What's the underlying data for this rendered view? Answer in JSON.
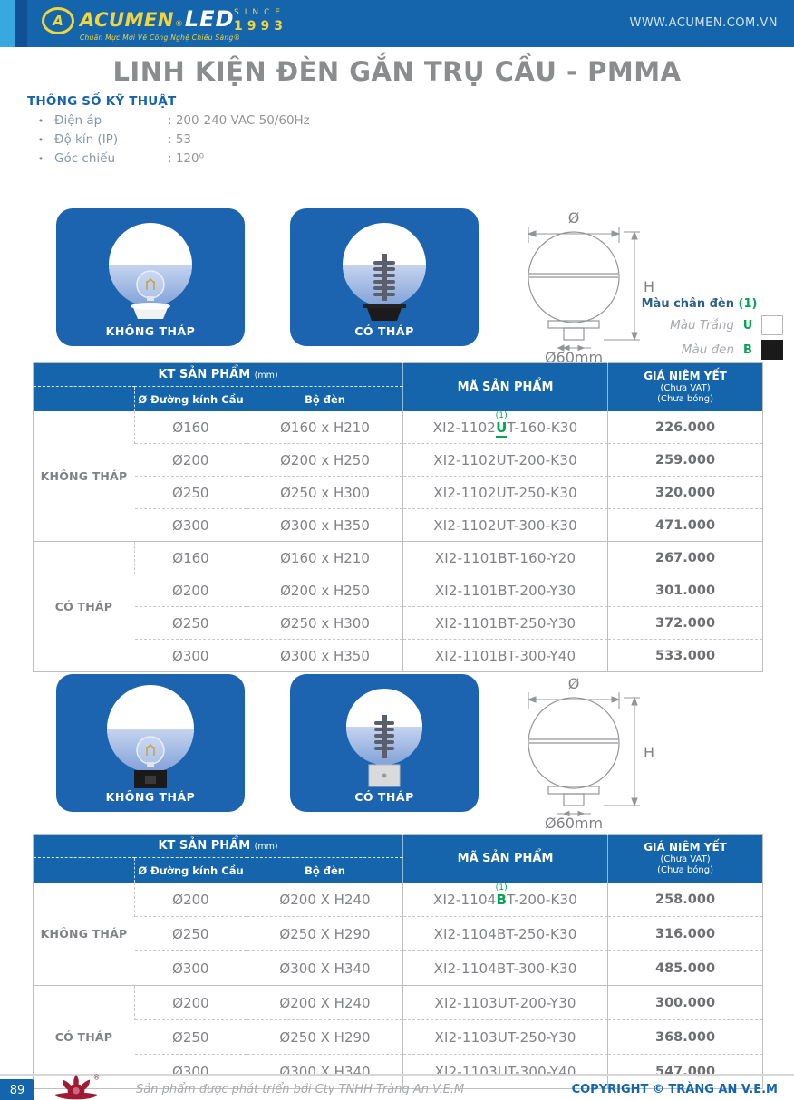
{
  "header": {
    "logo_mark": "A",
    "brand": "ACUMEN",
    "brand_reg": "®",
    "brand2": "LED",
    "tagline": "Chuẩn Mực Mới Về Công Nghệ Chiếu Sáng®",
    "since_label": "SINCE",
    "since_year": "1993",
    "website": "WWW.ACUMEN.COM.VN"
  },
  "page": {
    "title": "LINH KIỆN ĐÈN GẮN TRỤ CẦU - PMMA",
    "page_number": "89"
  },
  "specs": {
    "heading": "THÔNG SỐ KỸ THUẬT",
    "items": [
      {
        "label": "Điện áp",
        "value": ": 200-240 VAC 50/60Hz"
      },
      {
        "label": "Độ kín (IP)",
        "value": ": 53"
      },
      {
        "label": "Góc chiếu",
        "value": ": 120⁰"
      }
    ]
  },
  "cards": {
    "row1": [
      {
        "label": "KHÔNG THÁP"
      },
      {
        "label": "CÓ THÁP"
      }
    ],
    "row2": [
      {
        "label": "KHÔNG THÁP"
      },
      {
        "label": "CÓ THÁP"
      }
    ]
  },
  "diagram": {
    "diameter": "Ø",
    "height": "H",
    "base_diameter": "Ø60mm"
  },
  "legend": {
    "title": "Màu chân đèn",
    "title_mark": "(1)",
    "items": [
      {
        "label": "Màu Trắng",
        "code": "U",
        "swatch": "#ffffff"
      },
      {
        "label": "Màu đen",
        "code": "B",
        "swatch": "#1a1a1a"
      }
    ]
  },
  "tables": [
    {
      "header": {
        "kt": "KT SẢN PHẨM",
        "kt_unit": "(mm)",
        "sub1": "Ø Đường kính Cầu",
        "sub2": "Bộ đèn",
        "code": "MÃ SẢN PHẨM",
        "price1": "GIÁ NIÊM YẾT",
        "price2": "(Chưa VAT)",
        "price3": "(Chưa bóng)"
      },
      "groups": [
        {
          "label": "KHÔNG THÁP",
          "rows": [
            {
              "dia": "Ø160",
              "set": "Ø160 x H210",
              "code_prefix": "XI2-1102",
              "code_mark": "U",
              "mark_underline": true,
              "code_suffix": "T-160-K30",
              "annotation": "(1)",
              "price": "226.000"
            },
            {
              "dia": "Ø200",
              "set": "Ø200 x H250",
              "code": "XI2-1102UT-200-K30",
              "price": "259.000"
            },
            {
              "dia": "Ø250",
              "set": "Ø250 x H300",
              "code": "XI2-1102UT-250-K30",
              "price": "320.000"
            },
            {
              "dia": "Ø300",
              "set": "Ø300 x H350",
              "code": "XI2-1102UT-300-K30",
              "price": "471.000"
            }
          ]
        },
        {
          "label": "CÓ THÁP",
          "rows": [
            {
              "dia": "Ø160",
              "set": "Ø160 x H210",
              "code": "XI2-1101BT-160-Y20",
              "price": "267.000"
            },
            {
              "dia": "Ø200",
              "set": "Ø200 x H250",
              "code": "XI2-1101BT-200-Y30",
              "price": "301.000"
            },
            {
              "dia": "Ø250",
              "set": "Ø250 x H300",
              "code": "XI2-1101BT-250-Y30",
              "price": "372.000"
            },
            {
              "dia": "Ø300",
              "set": "Ø300 x H350",
              "code": "XI2-1101BT-300-Y40",
              "price": "533.000"
            }
          ]
        }
      ]
    },
    {
      "header": {
        "kt": "KT SẢN PHẨM",
        "kt_unit": "(mm)",
        "sub1": "Ø Đường kính Cầu",
        "sub2": "Bộ đèn",
        "code": "MÃ SẢN PHẨM",
        "price1": "GIÁ NIÊM YẾT",
        "price2": "(Chưa VAT)",
        "price3": "(Chưa bóng)"
      },
      "groups": [
        {
          "label": "KHÔNG THÁP",
          "rows": [
            {
              "dia": "Ø200",
              "set": "Ø200 X H240",
              "code_prefix": "XI2-1104",
              "code_mark": "B",
              "mark_underline": false,
              "code_suffix": "T-200-K30",
              "annotation": "(1)",
              "price": "258.000"
            },
            {
              "dia": "Ø250",
              "set": "Ø250 X H290",
              "code": "XI2-1104BT-250-K30",
              "price": "316.000"
            },
            {
              "dia": "Ø300",
              "set": "Ø300 X H340",
              "code": "XI2-1104BT-300-K30",
              "price": "485.000"
            }
          ]
        },
        {
          "label": "CÓ THÁP",
          "rows": [
            {
              "dia": "Ø200",
              "set": "Ø200 X H240",
              "code": "XI2-1103UT-200-Y30",
              "price": "300.000"
            },
            {
              "dia": "Ø250",
              "set": "Ø250 X H290",
              "code": "XI2-1103UT-250-Y30",
              "price": "368.000"
            },
            {
              "dia": "Ø300",
              "set": "Ø300 X H340",
              "code": "XI2-1103UT-300-Y40",
              "price": "547.000"
            }
          ]
        }
      ]
    }
  ],
  "footer": {
    "credit": "Sản phẩm được phát triển bởi Cty TNHH Tràng An V.E.M",
    "copyright": "COPYRIGHT © TRÀNG AN V.E.M"
  },
  "colors": {
    "brand_blue": "#1565ac",
    "stripe_cyan": "#38a8e0",
    "stripe_navy": "#114f96",
    "brand_yellow": "#f2d53a",
    "accent_green": "#00a651",
    "title_gray": "#8a8c8e",
    "text_gray": "#808285",
    "lotus_red": "#9e1b32"
  }
}
